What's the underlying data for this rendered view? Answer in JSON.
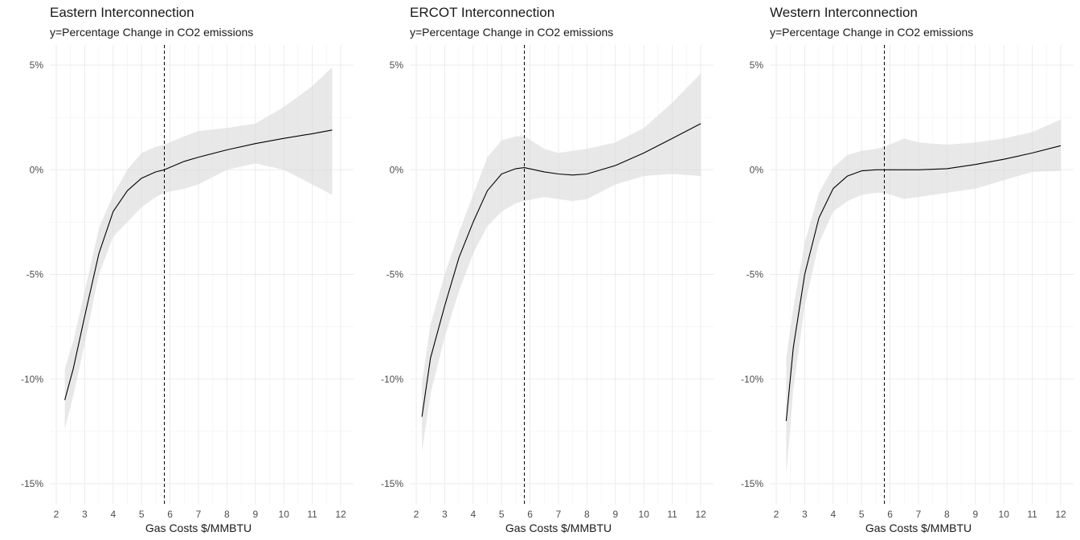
{
  "chart_data": [
    {
      "type": "line",
      "title": "Eastern Interconnection",
      "subtitle": "y=Percentage Change in CO2 emissions",
      "xlabel": "Gas Costs $/MMBTU",
      "ylabel": "",
      "xlim": [
        2,
        12
      ],
      "ylim": [
        -15,
        5
      ],
      "x_ticks": [
        "2",
        "3",
        "4",
        "5",
        "6",
        "7",
        "8",
        "9",
        "10",
        "11",
        "12"
      ],
      "y_ticks": [
        {
          "value": 5,
          "label": "5%"
        },
        {
          "value": 0,
          "label": "0%"
        },
        {
          "value": -5,
          "label": "-5%"
        },
        {
          "value": -10,
          "label": "-10%"
        },
        {
          "value": -15,
          "label": "-15%"
        }
      ],
      "vline_x": 5.8,
      "grid": true,
      "series": [
        {
          "x": [
            2.3,
            2.6,
            3.0,
            3.5,
            4.0,
            4.5,
            5.0,
            5.5,
            5.8,
            6.5,
            7.0,
            8.0,
            9.0,
            10.0,
            11.0,
            11.7
          ],
          "y": [
            -11.0,
            -9.5,
            -7.0,
            -4.0,
            -2.0,
            -1.0,
            -0.4,
            -0.1,
            0.0,
            0.4,
            0.6,
            0.95,
            1.25,
            1.5,
            1.72,
            1.9
          ],
          "lower": [
            -12.4,
            -10.8,
            -8.3,
            -5.0,
            -3.2,
            -2.5,
            -1.8,
            -1.3,
            -1.1,
            -0.9,
            -0.7,
            0.0,
            0.3,
            0.0,
            -0.7,
            -1.2
          ],
          "upper": [
            -9.5,
            -8.2,
            -5.8,
            -2.8,
            -1.2,
            0.0,
            0.8,
            1.1,
            1.2,
            1.6,
            1.85,
            2.0,
            2.2,
            3.0,
            4.0,
            4.9
          ]
        }
      ]
    },
    {
      "type": "line",
      "title": "ERCOT Interconnection",
      "subtitle": "y=Percentage Change in CO2 emissions",
      "xlabel": "Gas Costs $/MMBTU",
      "ylabel": "",
      "xlim": [
        2,
        12
      ],
      "ylim": [
        -15,
        5
      ],
      "x_ticks": [
        "2",
        "3",
        "4",
        "5",
        "6",
        "7",
        "8",
        "9",
        "10",
        "11",
        "12"
      ],
      "y_ticks": [
        {
          "value": 5,
          "label": "5%"
        },
        {
          "value": 0,
          "label": "0%"
        },
        {
          "value": -5,
          "label": "-5%"
        },
        {
          "value": -10,
          "label": "-10%"
        },
        {
          "value": -15,
          "label": "-15%"
        }
      ],
      "vline_x": 5.8,
      "grid": true,
      "series": [
        {
          "x": [
            2.2,
            2.5,
            3.0,
            3.5,
            4.0,
            4.5,
            5.0,
            5.5,
            5.8,
            6.5,
            7.0,
            7.5,
            8.0,
            9.0,
            10.0,
            11.0,
            12.0
          ],
          "y": [
            -11.8,
            -9.0,
            -6.5,
            -4.2,
            -2.5,
            -1.0,
            -0.2,
            0.05,
            0.1,
            -0.1,
            -0.2,
            -0.25,
            -0.2,
            0.2,
            0.8,
            1.5,
            2.2
          ],
          "lower": [
            -13.5,
            -10.7,
            -8.0,
            -5.8,
            -4.0,
            -2.7,
            -2.0,
            -1.6,
            -1.5,
            -1.3,
            -1.4,
            -1.5,
            -1.4,
            -0.7,
            -0.3,
            -0.2,
            -0.3
          ],
          "upper": [
            -10.2,
            -7.4,
            -5.0,
            -3.0,
            -1.2,
            0.6,
            1.4,
            1.6,
            1.6,
            1.0,
            0.8,
            0.9,
            1.0,
            1.3,
            2.0,
            3.2,
            4.6
          ]
        }
      ]
    },
    {
      "type": "line",
      "title": "Western Interconnection",
      "subtitle": "y=Percentage Change in CO2 emissions",
      "xlabel": "Gas Costs $/MMBTU",
      "ylabel": "",
      "xlim": [
        2,
        12
      ],
      "ylim": [
        -15,
        5
      ],
      "x_ticks": [
        "2",
        "3",
        "4",
        "5",
        "6",
        "7",
        "8",
        "9",
        "10",
        "11",
        "12"
      ],
      "y_ticks": [
        {
          "value": 5,
          "label": "5%"
        },
        {
          "value": 0,
          "label": "0%"
        },
        {
          "value": -5,
          "label": "-5%"
        },
        {
          "value": -10,
          "label": "-10%"
        },
        {
          "value": -15,
          "label": "-15%"
        }
      ],
      "vline_x": 5.8,
      "grid": true,
      "series": [
        {
          "x": [
            2.35,
            2.6,
            3.0,
            3.5,
            4.0,
            4.5,
            5.0,
            5.5,
            5.8,
            6.5,
            7.0,
            8.0,
            9.0,
            10.0,
            11.0,
            12.0
          ],
          "y": [
            -12.0,
            -8.5,
            -5.0,
            -2.3,
            -0.9,
            -0.3,
            -0.05,
            0.0,
            0.0,
            0.0,
            0.0,
            0.05,
            0.25,
            0.5,
            0.8,
            1.15
          ],
          "lower": [
            -14.6,
            -10.5,
            -6.5,
            -3.5,
            -2.0,
            -1.5,
            -1.2,
            -1.1,
            -1.1,
            -1.4,
            -1.3,
            -1.1,
            -0.9,
            -0.5,
            -0.1,
            -0.05
          ],
          "upper": [
            -9.0,
            -6.6,
            -3.5,
            -1.1,
            0.1,
            0.7,
            0.9,
            1.0,
            1.1,
            1.5,
            1.3,
            1.2,
            1.3,
            1.5,
            1.8,
            2.4
          ]
        }
      ]
    }
  ]
}
